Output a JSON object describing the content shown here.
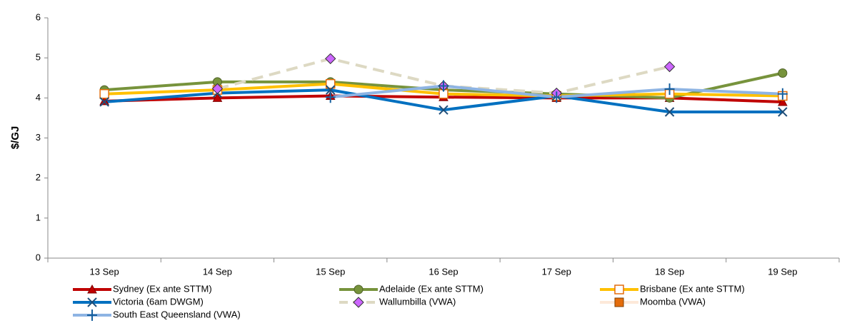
{
  "chart_data": {
    "type": "line",
    "y_label": "$/GJ",
    "categories": [
      "13 Sep",
      "14 Sep",
      "15 Sep",
      "16 Sep",
      "17 Sep",
      "18 Sep",
      "19 Sep"
    ],
    "ylim": [
      0,
      6
    ],
    "yticks": [
      0,
      1,
      2,
      3,
      4,
      5,
      6
    ],
    "grid": false,
    "series": [
      {
        "name": "Sydney (Ex ante STTM)",
        "color": "#c00000",
        "marker": "triangle",
        "marker_color": "#c00000",
        "values": [
          3.92,
          4.0,
          4.05,
          4.02,
          4.0,
          4.0,
          3.9
        ]
      },
      {
        "name": "Adelaide (Ex ante STTM)",
        "color": "#77933c",
        "marker": "circle",
        "marker_color": "#77933c",
        "values": [
          4.2,
          4.4,
          4.4,
          4.2,
          4.1,
          4.0,
          4.62
        ]
      },
      {
        "name": "Brisbane (Ex ante STTM)",
        "color": "#ffc000",
        "marker": "open-square",
        "marker_color": "#e46c0a",
        "values": [
          4.1,
          4.2,
          4.35,
          4.1,
          4.05,
          4.1,
          4.05
        ]
      },
      {
        "name": "Victoria (6am DWGM)",
        "color": "#0070c0",
        "marker": "x",
        "marker_color": "#1f4e79",
        "values": [
          3.9,
          4.12,
          4.2,
          3.7,
          4.05,
          3.65,
          3.65
        ]
      },
      {
        "name": "Wallumbilla (VWA)",
        "color": "#ddd9c3",
        "dashed": true,
        "marker": "diamond",
        "marker_color": "#cc66ff",
        "values": [
          null,
          4.23,
          4.98,
          4.3,
          4.12,
          4.78,
          null
        ]
      },
      {
        "name": "Moomba (VWA)",
        "color": "#fde9d9",
        "marker": "square",
        "marker_color": "#e46c0a",
        "values": [
          null,
          null,
          null,
          null,
          null,
          null,
          null
        ]
      },
      {
        "name": "South East Queensland (VWA)",
        "color": "#8eb4e3",
        "marker": "plus",
        "marker_color": "#17609e",
        "values": [
          null,
          null,
          4.02,
          4.3,
          4.02,
          4.22,
          4.1
        ]
      }
    ]
  }
}
